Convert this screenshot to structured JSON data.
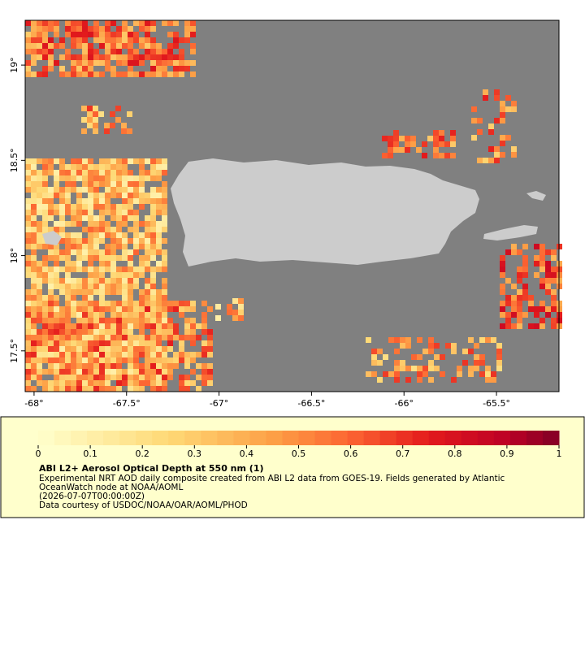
{
  "map": {
    "xlim": [
      -68.048,
      -65.162
    ],
    "ylim": [
      17.286,
      19.235
    ],
    "xticks": [
      {
        "value": -68,
        "label": "-68°"
      },
      {
        "value": -67.5,
        "label": "-67.5°"
      },
      {
        "value": -67,
        "label": "-67°"
      },
      {
        "value": -66.5,
        "label": "-66.5°"
      },
      {
        "value": -66,
        "label": "-66°"
      },
      {
        "value": -65.5,
        "label": "-65.5°"
      }
    ],
    "yticks": [
      {
        "value": 17.5,
        "label": "17.5°"
      },
      {
        "value": 18,
        "label": "18°"
      },
      {
        "value": 18.5,
        "label": "18.5°"
      },
      {
        "value": 19,
        "label": "19°"
      }
    ]
  },
  "legend": {
    "range": [
      0,
      1
    ],
    "ticks": [
      0,
      0.1,
      0.2,
      0.3,
      0.4,
      0.5,
      0.6,
      0.7,
      0.8,
      0.9,
      1
    ],
    "title": "ABI L2+ Aerosol Optical Depth at 550 nm (1)",
    "description": [
      "Experimental NRT AOD daily composite created from ABI L2 data from GOES-19. Fields generated by Atlantic",
      "OceanWatch node at NOAA/AOML",
      "(2026-07-07T00:00:00Z)",
      "Data courtesy of USDOC/NOAA/OAR/AOML/PHOD"
    ]
  }
}
